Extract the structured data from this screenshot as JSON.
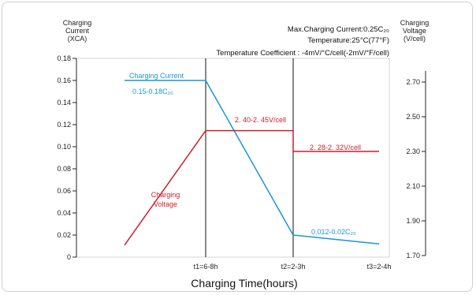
{
  "chart_data": {
    "type": "line",
    "xlabel": "Charging Time(hours)",
    "x_ticks": [
      "t1=6-8h",
      "t2=2-3h",
      "t3=2-4h"
    ],
    "y_left": {
      "label_lines": [
        "Charging",
        "Current",
        "(XCA)"
      ],
      "ticks": [
        "0",
        "0.02",
        "0.04",
        "0.06",
        "0.08",
        "0.10",
        "0.12",
        "0.14",
        "0.16",
        "0.18"
      ],
      "range": [
        0,
        0.18
      ]
    },
    "y_right": {
      "label_lines": [
        "Charging",
        "Voltage",
        "(V/cell)"
      ],
      "ticks": [
        "1.70",
        "1.90",
        "2.10",
        "2.30",
        "2.50",
        "2.70"
      ],
      "range": [
        1.7,
        2.7
      ]
    },
    "info": [
      "Max.Charging Current:0.25C₂₀",
      "Temperature:25°C(77°F)",
      "Temperature  Coefficient : -4mV/°C/cell(-2mV/°F/cell)"
    ],
    "series": [
      {
        "name": "Charging Current",
        "color": "#1a96d8",
        "axis": "left",
        "points": [
          {
            "x": 0,
            "y": 0.16
          },
          {
            "x": 1,
            "y": 0.16
          },
          {
            "x": 2,
            "y": 0.02
          },
          {
            "x": 3,
            "y": 0.012
          }
        ]
      },
      {
        "name": "Charging Voltage",
        "color": "#cc1f2b",
        "axis": "right",
        "points": [
          {
            "x": 0,
            "y": 1.76
          },
          {
            "x": 1,
            "y": 2.42
          },
          {
            "x": 2,
            "y": 2.42
          },
          {
            "x": 2,
            "y": 2.3
          },
          {
            "x": 3,
            "y": 2.3
          }
        ]
      }
    ],
    "annotations": {
      "current_name": "Charging Current",
      "current_range": "0.15-0.18C₂₀",
      "current_end": "0.012-0.02C₂₀",
      "voltage_name_lines": [
        "Charging",
        "Voltage"
      ],
      "voltage_stage2": "2. 40-2. 45V/cell",
      "voltage_stage3": "2. 28-2. 32V/cell"
    },
    "phase_dividers": [
      "t1",
      "t2"
    ]
  }
}
